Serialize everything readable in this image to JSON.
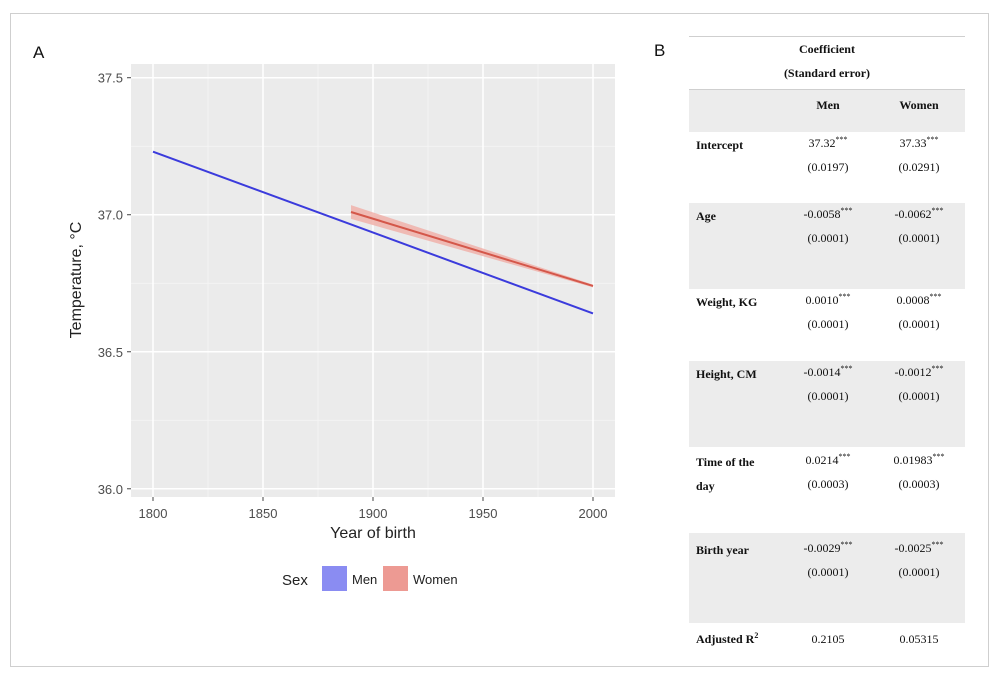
{
  "panels": {
    "a_label": "A",
    "b_label": "B"
  },
  "colors": {
    "men": "#3b3bdc",
    "women": "#d4574a",
    "women_band": "#f0b1aa",
    "panel_bg": "#ebebeb",
    "legend_men": "#8a8cf2",
    "legend_women": "#ed9a93"
  },
  "chart_data": {
    "type": "line",
    "title": "",
    "xlabel": "Year of birth",
    "ylabel": "Temperature, °C",
    "xlim": [
      1790,
      2010
    ],
    "ylim": [
      35.97,
      37.55
    ],
    "xticks": [
      1800,
      1850,
      1900,
      1950,
      2000
    ],
    "xtick_labels": [
      "1800",
      "1850",
      "1900",
      "1950",
      "2000"
    ],
    "yticks": [
      36.0,
      36.5,
      37.0,
      37.5
    ],
    "ytick_labels": [
      "36.0",
      "36.5",
      "37.0",
      "37.5"
    ],
    "grid": true,
    "legend_title": "Sex",
    "legend_position": "bottom",
    "series": [
      {
        "name": "Men",
        "color": "#3b3bdc",
        "x": [
          1800,
          2000
        ],
        "y": [
          37.23,
          36.64
        ]
      },
      {
        "name": "Women",
        "color": "#d4574a",
        "x": [
          1890,
          2000
        ],
        "y": [
          37.01,
          36.74
        ],
        "band": {
          "upper": [
            37.035,
            36.745
          ],
          "lower": [
            36.985,
            36.735
          ]
        }
      }
    ]
  },
  "table": {
    "header_line1": "Coefficient",
    "header_line2": "(Standard error)",
    "col_men": "Men",
    "col_women": "Women",
    "rows": [
      {
        "label": "Intercept",
        "men": "37.32",
        "men_sig": "***",
        "women": "37.33",
        "women_sig": "***",
        "men_se": "(0.0197)",
        "women_se": "(0.0291)"
      },
      {
        "label": "Age",
        "men": "-0.0058",
        "men_sig": "***",
        "women": "-0.0062",
        "women_sig": "***",
        "men_se": "(0.0001)",
        "women_se": "(0.0001)"
      },
      {
        "label": "Weight, KG",
        "men": "0.0010",
        "men_sig": "***",
        "women": "0.0008",
        "women_sig": "***",
        "men_se": "(0.0001)",
        "women_se": "(0.0001)"
      },
      {
        "label": "Height, CM",
        "men": "-0.0014",
        "men_sig": "***",
        "women": "-0.0012",
        "women_sig": "***",
        "men_se": "(0.0001)",
        "women_se": "(0.0001)"
      },
      {
        "label": "Time of the",
        "label2": "day",
        "men": "0.0214",
        "men_sig": "***",
        "women": "0.01983",
        "women_sig": "***",
        "men_se": "(0.0003)",
        "women_se": "(0.0003)"
      },
      {
        "label": "Birth year",
        "men": "-0.0029",
        "men_sig": "***",
        "women": "-0.0025",
        "women_sig": "***",
        "men_se": "(0.0001)",
        "women_se": "(0.0001)"
      }
    ],
    "adj_label": "Adjusted R",
    "adj_sup": "2",
    "adj_men": "0.2105",
    "adj_women": "0.05315"
  }
}
